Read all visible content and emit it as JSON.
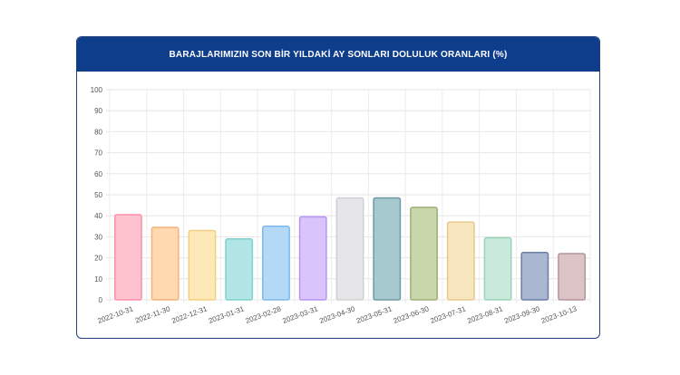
{
  "chart_data": {
    "type": "bar",
    "title": "BARAJLARIMIZIN SON BİR YILDAKİ AY SONLARI DOLULUK ORANLARI (%)",
    "categories": [
      "2022-10-31",
      "2022-11-30",
      "2022-12-31",
      "2023-01-31",
      "2023-02-28",
      "2023-03-31",
      "2023-04-30",
      "2023-05-31",
      "2023-06-30",
      "2023-07-31",
      "2023-08-31",
      "2023-09-30",
      "2023-10-13"
    ],
    "values": [
      40.5,
      34.5,
      33,
      29,
      35,
      39.5,
      48.5,
      48.5,
      44,
      37,
      29.5,
      22.5,
      22
    ],
    "ylim": [
      0,
      100
    ],
    "yticks": [
      0,
      10,
      20,
      30,
      40,
      50,
      60,
      70,
      80,
      90,
      100
    ],
    "xlabel": "",
    "ylabel": "",
    "grid": true,
    "colors": {
      "fills": [
        "#ffc2cf",
        "#ffd9b0",
        "#fde9b8",
        "#b2e6e6",
        "#b3d9f7",
        "#d9c4fb",
        "#e6e6e8",
        "#a6c9cf",
        "#c9d6a9",
        "#f8e6bf",
        "#c9eadb",
        "#a9b7d0",
        "#dcc3c6"
      ],
      "borders": [
        "#ff8fa7",
        "#f6b27a",
        "#f2cf7e",
        "#7fd0d0",
        "#7db8ea",
        "#b894f2",
        "#cfcfd3",
        "#6f9aa3",
        "#9fb177",
        "#e6c98a",
        "#98d3ba",
        "#6a7fa3",
        "#b59499"
      ]
    }
  }
}
